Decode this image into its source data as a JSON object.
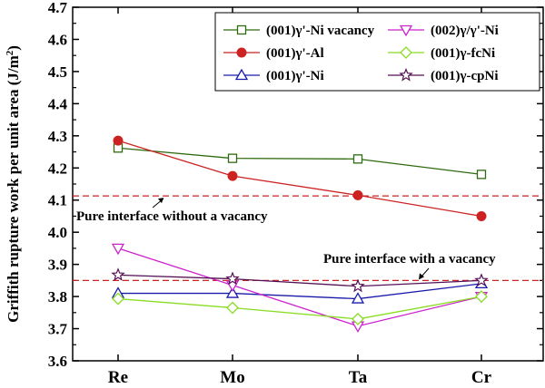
{
  "chart_data": {
    "type": "line",
    "title": "",
    "xlabel": "",
    "ylabel": "Griffith rupture work per unit area (J/m",
    "ylabel_sup": "2",
    "ylabel_close": ")",
    "categories": [
      "Re",
      "Mo",
      "Ta",
      "Cr"
    ],
    "ylim": [
      3.6,
      4.7
    ],
    "yticks": [
      "3.6",
      "3.7",
      "3.8",
      "3.9",
      "4.0",
      "4.1",
      "4.2",
      "4.3",
      "4.4",
      "4.5",
      "4.6",
      "4.7"
    ],
    "series": [
      {
        "name": "(001)γ'-Ni vacancy",
        "values": [
          4.262,
          4.23,
          4.228,
          4.18
        ],
        "color": "#2e6b0e",
        "marker": "square"
      },
      {
        "name": "(001)γ'-Al",
        "values": [
          4.285,
          4.175,
          4.115,
          4.05
        ],
        "color": "#cc2222",
        "marker": "circle"
      },
      {
        "name": "(001)γ'-Ni",
        "values": [
          3.81,
          3.81,
          3.793,
          3.84
        ],
        "color": "#1a1aaa",
        "marker": "triangle-up"
      },
      {
        "name": "(002)γ/γ'-Ni",
        "values": [
          3.95,
          3.835,
          3.708,
          3.8
        ],
        "color": "#cc22cc",
        "marker": "triangle-down"
      },
      {
        "name": "(001)γ-fcNi",
        "values": [
          3.793,
          3.765,
          3.73,
          3.8
        ],
        "color": "#88dd22",
        "marker": "diamond"
      },
      {
        "name": "(001)γ-cpNi",
        "values": [
          3.867,
          3.855,
          3.832,
          3.85
        ],
        "color": "#551155",
        "marker": "star"
      }
    ],
    "reference_lines": [
      {
        "label": "Pure interface without a vacancy",
        "value": 4.113,
        "color": "#cc2222"
      },
      {
        "label": "Pure interface with a vacancy",
        "value": 3.85,
        "color": "#cc2222"
      }
    ],
    "legend_position": "top"
  }
}
